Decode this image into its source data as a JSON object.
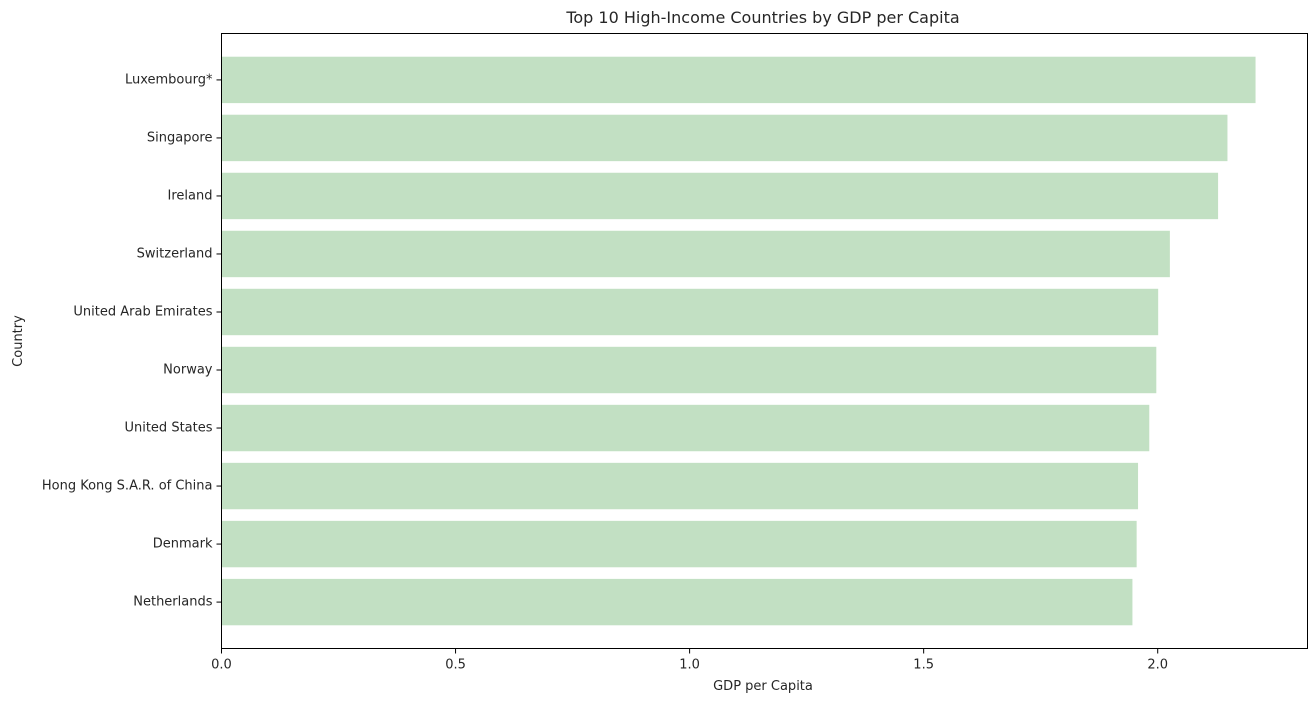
{
  "chart_data": {
    "type": "bar",
    "orientation": "horizontal",
    "title": "Top 10 High-Income Countries by GDP per Capita",
    "xlabel": "GDP per Capita",
    "ylabel": "Country",
    "categories": [
      "Luxembourg*",
      "Singapore",
      "Ireland",
      "Switzerland",
      "United Arab Emirates",
      "Norway",
      "United States",
      "Hong Kong S.A.R. of China",
      "Denmark",
      "Netherlands"
    ],
    "values": [
      2.209,
      2.149,
      2.129,
      2.026,
      2.001,
      1.997,
      1.982,
      1.958,
      1.955,
      1.946
    ],
    "xlim": [
      0,
      2.32
    ],
    "xticks": [
      "0.0",
      "0.5",
      "1.0",
      "1.5",
      "2.0"
    ],
    "xtick_values": [
      0,
      0.5,
      1.0,
      1.5,
      2.0
    ],
    "grid": false,
    "bar_color": "#c2e0c3",
    "axis_color": "#000000"
  }
}
